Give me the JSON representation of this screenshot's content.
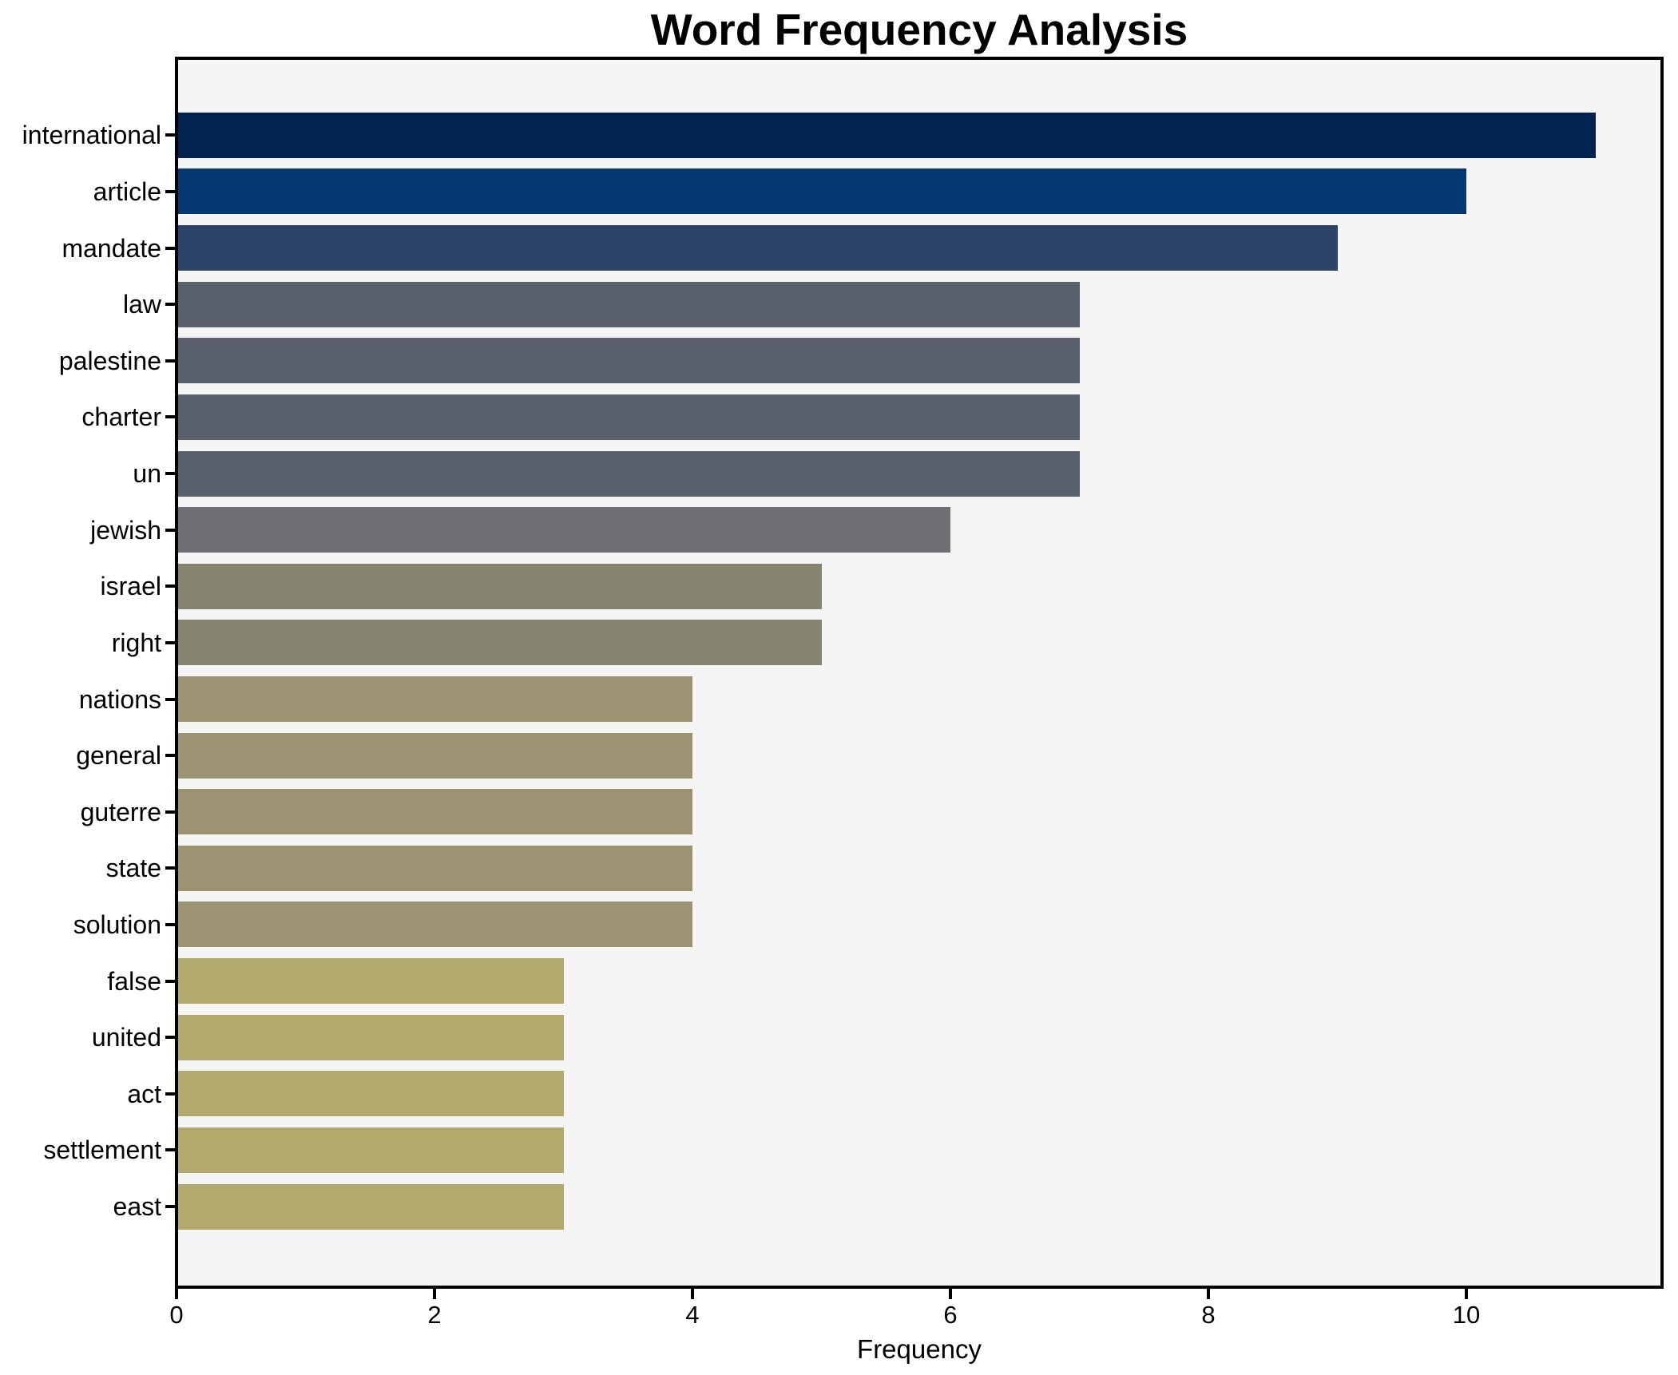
{
  "title": "Word Frequency Analysis",
  "chart_data": {
    "type": "bar",
    "orientation": "horizontal",
    "title": "Word Frequency Analysis",
    "xlabel": "Frequency",
    "ylabel": "",
    "categories": [
      "international",
      "article",
      "mandate",
      "law",
      "palestine",
      "charter",
      "un",
      "jewish",
      "israel",
      "right",
      "nations",
      "general",
      "guterre",
      "state",
      "solution",
      "false",
      "united",
      "act",
      "settlement",
      "east"
    ],
    "values": [
      11,
      10,
      9,
      7,
      7,
      7,
      7,
      6,
      5,
      5,
      4,
      4,
      4,
      4,
      4,
      3,
      3,
      3,
      3,
      3
    ],
    "bar_colors": [
      "#02234e",
      "#033970",
      "#2e4368",
      "#5b616c",
      "#5b616c",
      "#5b616c",
      "#5b616c",
      "#6f7073",
      "#858471",
      "#858471",
      "#9b9371",
      "#9b9371",
      "#9b9371",
      "#9b9371",
      "#9b9371",
      "#b2a96c",
      "#b2a96c",
      "#b2a96c",
      "#b2a96c",
      "#b2a96c"
    ],
    "x_ticks": [
      0,
      2,
      4,
      6,
      8,
      10
    ],
    "x_tick_labels": [
      "0",
      "2",
      "4",
      "6",
      "8",
      "10"
    ],
    "xlim": [
      0,
      11.52
    ],
    "grid": false,
    "legend": "none",
    "plot_background": "#f5f5f5",
    "figure_background": "#ffffff",
    "spine_color": "#000000",
    "text_color": "#000000"
  }
}
